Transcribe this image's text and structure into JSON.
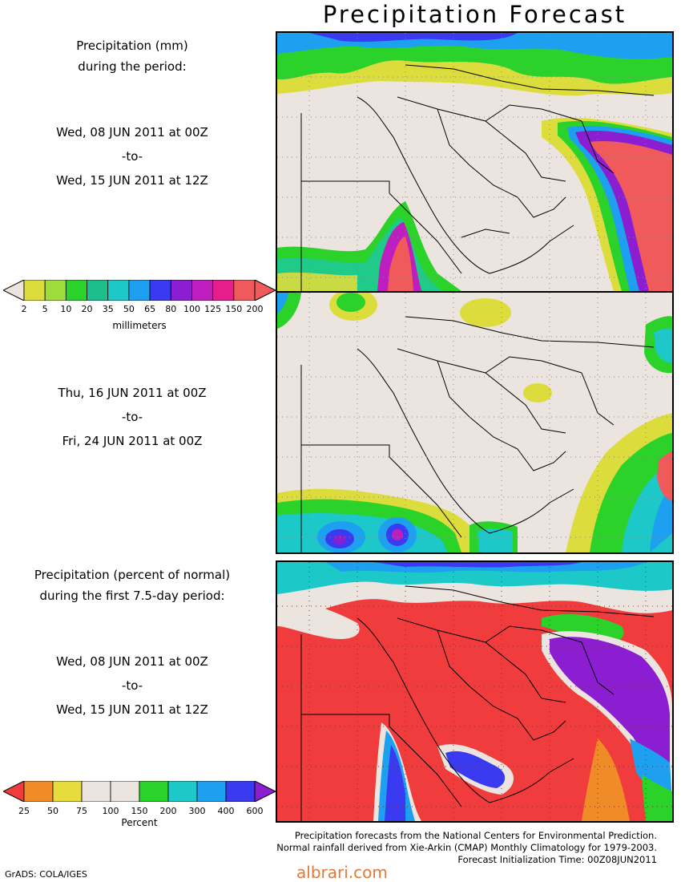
{
  "header": {
    "title": "Precipitation Forecast"
  },
  "period1": {
    "heading_line1": "Precipitation (mm)",
    "heading_line2": "during the period:",
    "start": "Wed, 08 JUN 2011 at 00Z",
    "sep": "-to-",
    "end": "Wed, 15 JUN 2011 at 12Z"
  },
  "mm_scale": {
    "labels": [
      "2",
      "5",
      "10",
      "20",
      "35",
      "50",
      "65",
      "80",
      "100",
      "125",
      "150",
      "200"
    ],
    "colors": [
      "#dcdc3c",
      "#9edc3c",
      "#2ad22a",
      "#1ebe8c",
      "#1cc8c8",
      "#1ea0f0",
      "#3a3af0",
      "#8c1ed2",
      "#be1ebe",
      "#e61e8c",
      "#f05a5a"
    ],
    "left_arrow_color": "#ece4de",
    "right_arrow_color": "#f05a5a",
    "unit": "millimeters"
  },
  "period2": {
    "start": "Thu, 16 JUN 2011 at 00Z",
    "sep": "-to-",
    "end": "Fri, 24 JUN 2011 at 00Z"
  },
  "period3": {
    "heading_line1": "Precipitation (percent of normal)",
    "heading_line2": "during the first 7.5-day period:",
    "start": "Wed, 08 JUN 2011 at 00Z",
    "sep": "-to-",
    "end": "Wed, 15 JUN 2011 at 12Z"
  },
  "pct_scale": {
    "labels": [
      "25",
      "50",
      "75",
      "100",
      "150",
      "200",
      "300",
      "400",
      "600"
    ],
    "colors": [
      "#f08c28",
      "#e6dc3c",
      "#ece4de",
      "#ece4de",
      "#2ad22a",
      "#1cc8c8",
      "#1ea0f0",
      "#3a3af0"
    ],
    "left_arrow_color": "#f03c3c",
    "right_arrow_color": "#8c1ed2",
    "unit": "Percent"
  },
  "footer": {
    "line1": "Precipitation forecasts from the National Centers for Environmental Prediction.",
    "line2": "Normal rainfall derived from Xie-Arkin (CMAP) Monthly Climatology for 1979-2003.",
    "line3": "Forecast Initialization Time: 00Z08JUN2011"
  },
  "credit": "GrADS: COLA/IGES",
  "watermark": "albrari.com"
}
